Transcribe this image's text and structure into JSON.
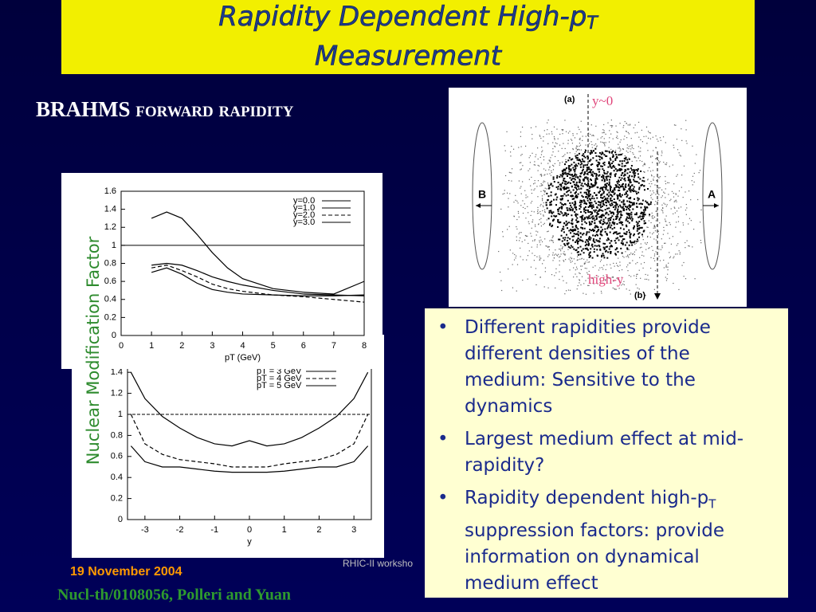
{
  "slide": {
    "title": {
      "text": "Rapidity Dependent High-p",
      "sub": "T",
      "line2": "Measurement"
    },
    "subtitle": "BRAHMS forward rapidity",
    "y_axis_label": "Nuclear Modification Factor",
    "diagram": {
      "panel_a": "(a)",
      "panel_b": "(b)",
      "mid_label": "y~0",
      "forward_label": "high-y",
      "left_nucleus": "B",
      "right_nucleus": "A"
    },
    "bullets": [
      {
        "text": "Different rapidities provide different densities of the medium: Sensitive to the dynamics"
      },
      {
        "text": "Largest medium effect  at mid-rapidity?"
      },
      {
        "text": "Rapidity dependent high-p",
        "sub": "T",
        "post": " suppression factors: provide information on dynamical medium effect"
      }
    ],
    "date": "19 November 2004",
    "workshop": "RHIC-II worksho",
    "reference": "Nucl-th/0108056, Polleri and Yuan"
  },
  "chart_data": [
    {
      "type": "line",
      "xlabel": "pT (GeV)",
      "reference_line": 1,
      "x": [
        1,
        1.5,
        2,
        2.5,
        3,
        3.5,
        4,
        5,
        6,
        7,
        8
      ],
      "xlim": [
        0,
        8
      ],
      "ylim": [
        0,
        1.6
      ],
      "xticks": [
        0,
        1,
        2,
        3,
        4,
        5,
        6,
        7,
        8
      ],
      "yticks": [
        0,
        0.2,
        0.4,
        0.6,
        0.8,
        1,
        1.2,
        1.4,
        1.6
      ],
      "series": [
        {
          "name": "y=0.0",
          "color": "#000000",
          "dash": false,
          "values": [
            1.3,
            1.37,
            1.3,
            1.12,
            0.92,
            0.75,
            0.63,
            0.52,
            0.48,
            0.46,
            0.6
          ]
        },
        {
          "name": "y=1.0",
          "color": "#000000",
          "dash": false,
          "values": [
            0.78,
            0.8,
            0.78,
            0.72,
            0.65,
            0.6,
            0.56,
            0.5,
            0.46,
            0.45,
            0.44
          ]
        },
        {
          "name": "y=2.0",
          "color": "#000000",
          "dash": true,
          "values": [
            0.75,
            0.78,
            0.72,
            0.65,
            0.57,
            0.52,
            0.49,
            0.45,
            0.43,
            0.4,
            0.37
          ]
        },
        {
          "name": "y=3.0",
          "color": "#000000",
          "dash": false,
          "values": [
            0.7,
            0.75,
            0.68,
            0.58,
            0.51,
            0.48,
            0.46,
            0.45,
            0.44,
            0.44,
            0.45
          ]
        }
      ]
    },
    {
      "type": "line",
      "xlabel": "y",
      "reference_line": 1,
      "x": [
        -3.4,
        -3,
        -2.5,
        -2,
        -1.5,
        -1,
        -0.5,
        0,
        0.5,
        1,
        1.5,
        2,
        2.5,
        3,
        3.4
      ],
      "xlim": [
        -3.5,
        3.5
      ],
      "ylim": [
        0,
        1.5
      ],
      "xticks": [
        -3,
        -2,
        -1,
        0,
        1,
        2,
        3
      ],
      "yticks": [
        0,
        0.2,
        0.4,
        0.6,
        0.8,
        1,
        1.2,
        1.4
      ],
      "series": [
        {
          "name": "pT = 3 GeV",
          "color": "#000000",
          "dash": false,
          "values": [
            1.4,
            1.15,
            0.98,
            0.87,
            0.78,
            0.72,
            0.7,
            0.75,
            0.7,
            0.72,
            0.78,
            0.87,
            0.98,
            1.15,
            1.4
          ]
        },
        {
          "name": "pT = 4 GeV",
          "color": "#000000",
          "dash": true,
          "values": [
            1.0,
            0.72,
            0.62,
            0.57,
            0.55,
            0.53,
            0.5,
            0.5,
            0.5,
            0.53,
            0.55,
            0.57,
            0.62,
            0.72,
            1.0
          ]
        },
        {
          "name": "pT = 5 GeV",
          "color": "#000000",
          "dash": false,
          "values": [
            0.7,
            0.55,
            0.5,
            0.5,
            0.48,
            0.46,
            0.45,
            0.45,
            0.45,
            0.46,
            0.48,
            0.5,
            0.5,
            0.55,
            0.7
          ]
        }
      ]
    }
  ]
}
